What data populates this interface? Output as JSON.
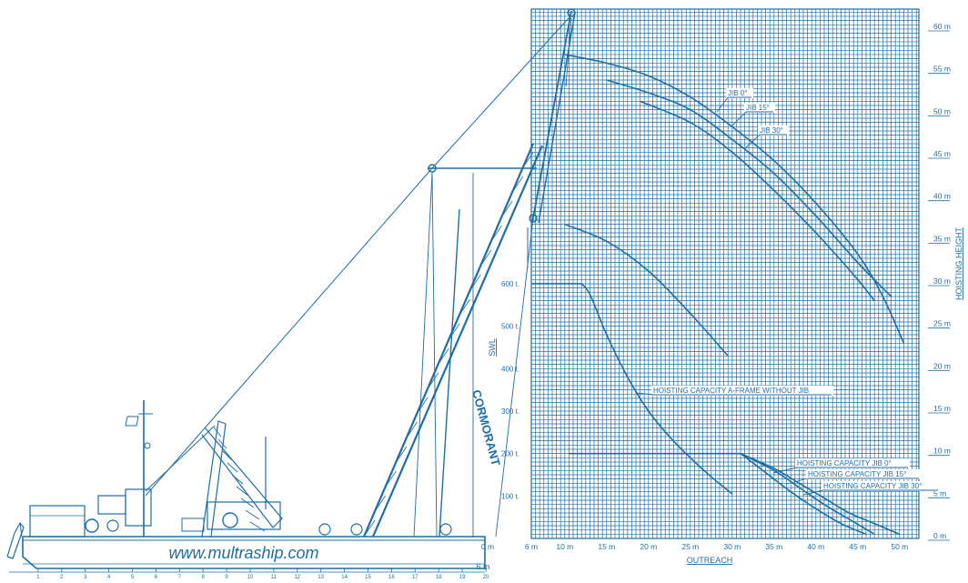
{
  "colors": {
    "ink": "#1d6ea6",
    "grid": "#1d6ea6",
    "paper": "#ffffff"
  },
  "website": "www.multraship.com",
  "crane_name": "CORMORANT",
  "x_axis": {
    "label": "OUTREACH",
    "ticks": [
      {
        "v": 0,
        "t": "0 m"
      },
      {
        "v": 6,
        "t": "6 m"
      },
      {
        "v": 10,
        "t": "10 m"
      },
      {
        "v": 15,
        "t": "15 m"
      },
      {
        "v": 20,
        "t": "20 m"
      },
      {
        "v": 25,
        "t": "25 m"
      },
      {
        "v": 30,
        "t": "30 m"
      },
      {
        "v": 35,
        "t": "35 m"
      },
      {
        "v": 40,
        "t": "40 m"
      },
      {
        "v": 45,
        "t": "45 m"
      },
      {
        "v": 50,
        "t": "50 m"
      }
    ]
  },
  "y_axis": {
    "label": "HOISTING HEIGHT",
    "ticks": [
      {
        "v": 0,
        "t": "0 m"
      },
      {
        "v": 5,
        "t": "5 m"
      },
      {
        "v": 10,
        "t": "10 m"
      },
      {
        "v": 15,
        "t": "15 m"
      },
      {
        "v": 20,
        "t": "20 m"
      },
      {
        "v": 25,
        "t": "25 m"
      },
      {
        "v": 30,
        "t": "30 m"
      },
      {
        "v": 35,
        "t": "35 m"
      },
      {
        "v": 40,
        "t": "40 m"
      },
      {
        "v": 45,
        "t": "45 m"
      },
      {
        "v": 50,
        "t": "50 m"
      },
      {
        "v": 55,
        "t": "55 m"
      },
      {
        "v": 60,
        "t": "60 m"
      }
    ]
  },
  "swl_axis": {
    "label": "SWL",
    "ticks": [
      {
        "v": 100,
        "t": "100 t."
      },
      {
        "v": 200,
        "t": "200 t."
      },
      {
        "v": 300,
        "t": "300 t."
      },
      {
        "v": 400,
        "t": "400 t."
      },
      {
        "v": 500,
        "t": "500 t."
      },
      {
        "v": 600,
        "t": "600 t."
      }
    ]
  },
  "under_keel_label": "6 m",
  "chart_data": {
    "type": "line",
    "x_unit": "m",
    "xlim": [
      6,
      52
    ],
    "ylim": [
      0,
      60
    ],
    "grid": true,
    "height_curves": [
      {
        "name": "JIB 0°",
        "x": [
          10,
          15,
          20,
          25,
          30,
          35,
          40,
          45,
          48,
          50.5
        ],
        "y": [
          57,
          56,
          54.5,
          52,
          48.5,
          44.5,
          39.5,
          33.5,
          28.5,
          23
        ]
      },
      {
        "name": "JIB 15°",
        "x": [
          15,
          20,
          25,
          30,
          35,
          40,
          45,
          49
        ],
        "y": [
          54,
          52.5,
          50.5,
          47,
          43,
          38,
          32.5,
          28.5
        ]
      },
      {
        "name": "JIB 30°",
        "x": [
          19,
          25,
          30,
          35,
          40,
          45,
          47
        ],
        "y": [
          51.5,
          49,
          45.5,
          41,
          36,
          30.5,
          28
        ]
      },
      {
        "name": "A-FRAME",
        "x": [
          10,
          15,
          20,
          25,
          29.5
        ],
        "y": [
          37,
          35,
          31.5,
          26.5,
          21.5
        ]
      }
    ],
    "capacity_curves": [
      {
        "name": "HOISTING CAPACITY A-FRAME WITHOUT JIB",
        "x": [
          6,
          12,
          13,
          15,
          17.5,
          20,
          22.5,
          25,
          27.5,
          30
        ],
        "y": [
          600,
          600,
          575,
          480,
          380,
          300,
          240,
          190,
          145,
          105
        ]
      },
      {
        "name": "HOISTING CAPACITY JIB 0°",
        "x": [
          10.5,
          31,
          35,
          38,
          41,
          44,
          47,
          50
        ],
        "y": [
          200,
          200,
          165,
          130,
          95,
          60,
          35,
          10
        ]
      },
      {
        "name": "HOISTING CAPACITY JIB 15°",
        "x": [
          31,
          35,
          38,
          41,
          44,
          47
        ],
        "y": [
          200,
          160,
          120,
          80,
          45,
          10
        ]
      },
      {
        "name": "HOISTING CAPACITY JIB 30°",
        "x": [
          31,
          34,
          37,
          40,
          43,
          46
        ],
        "y": [
          200,
          155,
          110,
          70,
          35,
          10
        ]
      }
    ],
    "callouts": [
      {
        "text": "JIB 0°"
      },
      {
        "text": "JIB 15°"
      },
      {
        "text": "JIB 30°"
      },
      {
        "text": "HOISTING CAPACITY A-FRAME WITHOUT JIB"
      },
      {
        "text": "HOISTING CAPACITY JIB 0°"
      },
      {
        "text": "HOISTING CAPACITY JIB 15°"
      },
      {
        "text": "HOISTING CAPACITY JIB 30°"
      }
    ]
  }
}
